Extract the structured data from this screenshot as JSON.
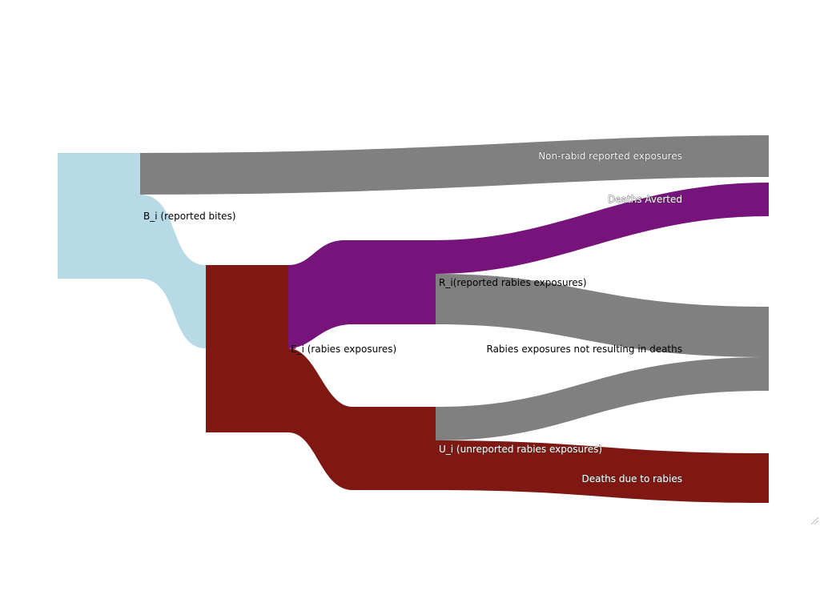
{
  "diagram": {
    "type": "sankey",
    "colors": {
      "bites": "#b7dae6",
      "non_rabid": "#808080",
      "exposures": "#7f1812",
      "reported": "#76147b",
      "deaths_averted": "#76147b",
      "not_resulting": "#808080",
      "deaths_due": "#7f1812"
    },
    "nodes": {
      "bites": "B_i (reported bites)",
      "exposures": "E_i (rabies exposures)",
      "reported": "R_i(reported rabies exposures)",
      "unreported": "U_i (unreported rabies exposures)",
      "non_rabid": "Non-rabid reported exposures",
      "deaths_averted": "Deaths Averted",
      "not_resulting": "Rabies exposures not resulting in deaths",
      "deaths_due": "Deaths due to rabies"
    }
  }
}
